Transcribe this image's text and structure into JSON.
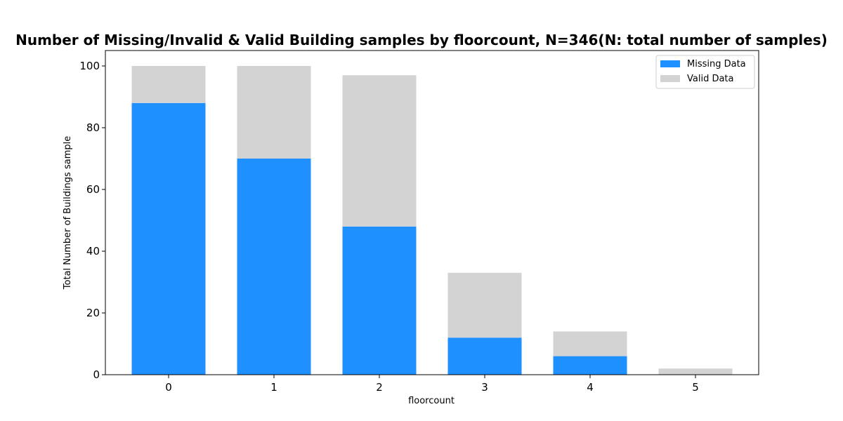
{
  "chart_data": {
    "type": "bar",
    "stacked": true,
    "title": "Number of Missing/Invalid & Valid Building samples by floorcount, N=346(N: total number of samples)",
    "xlabel": "floorcount",
    "ylabel": "Total Number of Buildings sample",
    "categories": [
      "0",
      "1",
      "2",
      "3",
      "4",
      "5"
    ],
    "series": [
      {
        "name": "Missing Data",
        "color": "#1e90ff",
        "values": [
          88,
          70,
          48,
          12,
          6,
          0
        ]
      },
      {
        "name": "Valid Data",
        "color": "#d3d3d3",
        "values": [
          12,
          30,
          49,
          21,
          8,
          2
        ]
      }
    ],
    "ylim": [
      0,
      105
    ],
    "yticks": [
      0,
      20,
      40,
      60,
      80,
      100
    ],
    "legend_position": "top-right",
    "grid": false
  }
}
